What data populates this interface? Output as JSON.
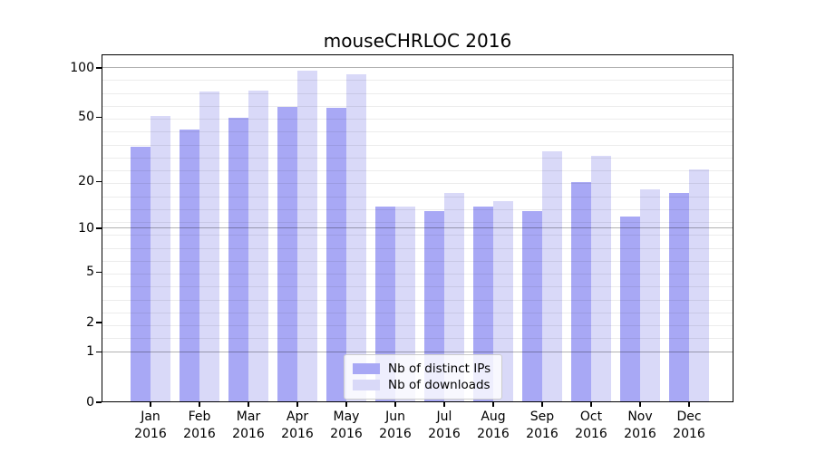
{
  "title": "mouseCHRLOC 2016",
  "chart_data": {
    "type": "bar",
    "title": "mouseCHRLOC 2016",
    "categories": [
      "Jan 2016",
      "Feb 2016",
      "Mar 2016",
      "Apr 2016",
      "May 2016",
      "Jun 2016",
      "Jul 2016",
      "Aug 2016",
      "Sep 2016",
      "Oct 2016",
      "Nov 2016",
      "Dec 2016"
    ],
    "month_labels": [
      "Jan",
      "Feb",
      "Mar",
      "Apr",
      "May",
      "Jun",
      "Jul",
      "Aug",
      "Sep",
      "Oct",
      "Nov",
      "Dec"
    ],
    "year_label": "2016",
    "series": [
      {
        "name": "Nb of distinct IPs",
        "color": "#a8a8f5",
        "values": [
          33,
          42,
          50,
          58,
          57,
          14,
          13,
          14,
          13,
          20,
          12,
          17
        ]
      },
      {
        "name": "Nb of downloads",
        "color": "#d9d9f8",
        "values": [
          51,
          72,
          73,
          96,
          92,
          14,
          17,
          15,
          31,
          29,
          18,
          24
        ]
      }
    ],
    "xlabel": "",
    "ylabel": "",
    "y_ticks": [
      0,
      1,
      2,
      5,
      10,
      20,
      50,
      100
    ],
    "y_scale": "log10(1+x)",
    "ylim": [
      0,
      121
    ],
    "grid": true,
    "grid_major_values": [
      1,
      10,
      100
    ],
    "legend_position": "lower center"
  },
  "colors": {
    "background": "#ffffff",
    "axis": "#000000",
    "grid_major": "#b3b3b3",
    "grid_minor": "#ececec",
    "legend_border": "#cccccc"
  }
}
